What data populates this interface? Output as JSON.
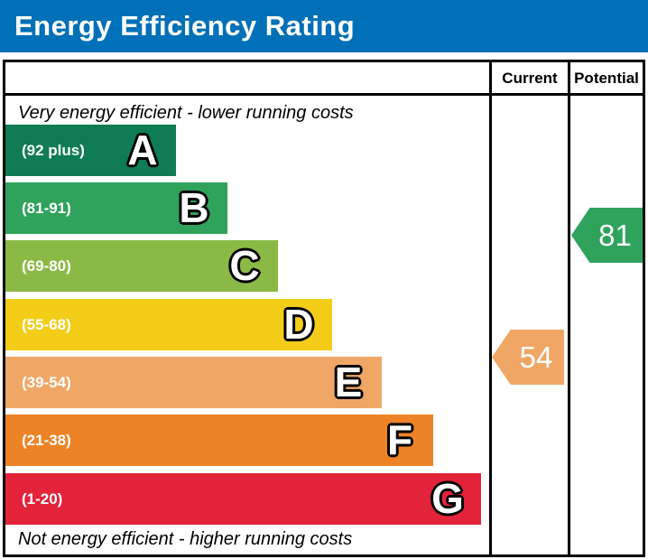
{
  "title": "Energy Efficiency Rating",
  "colors": {
    "banner_blue": "#0070b8",
    "border_black": "#000000"
  },
  "table": {
    "header": {
      "current_label": "Current",
      "potential_label": "Potential"
    },
    "top_note": "Very energy efficient - lower running costs",
    "bottom_note": "Not energy efficient - higher running costs"
  },
  "bands": [
    {
      "letter": "A",
      "range_label": "(92 plus)",
      "color": "#0f7c54"
    },
    {
      "letter": "B",
      "range_label": "(81-91)",
      "color": "#2fa35c"
    },
    {
      "letter": "C",
      "range_label": "(69-80)",
      "color": "#8aba45"
    },
    {
      "letter": "D",
      "range_label": "(55-68)",
      "color": "#f3cd18"
    },
    {
      "letter": "E",
      "range_label": "(39-54)",
      "color": "#f0a766"
    },
    {
      "letter": "F",
      "range_label": "(21-38)",
      "color": "#ed8327"
    },
    {
      "letter": "G",
      "range_label": "(1-20)",
      "color": "#e2233a"
    }
  ],
  "ratings": {
    "current": {
      "value": "54",
      "arrow_color": "#f0a766"
    },
    "potential": {
      "value": "81",
      "arrow_color": "#2fa35c"
    }
  },
  "chart_data": {
    "type": "bar",
    "title": "Energy Efficiency Rating",
    "categories": [
      "A",
      "B",
      "C",
      "D",
      "E",
      "F",
      "G"
    ],
    "band_ranges": [
      "92 plus",
      "81-91",
      "69-80",
      "55-68",
      "39-54",
      "21-38",
      "1-20"
    ],
    "band_colors": [
      "#0f7c54",
      "#2fa35c",
      "#8aba45",
      "#f3cd18",
      "#f0a766",
      "#ed8327",
      "#e2233a"
    ],
    "columns": [
      "Current",
      "Potential"
    ],
    "current_rating": 54,
    "current_band": "E",
    "potential_rating": 81,
    "potential_band": "B",
    "scale_min": 1,
    "scale_max": 100,
    "annotations": [
      "Very energy efficient - lower running costs",
      "Not energy efficient - higher running costs"
    ]
  }
}
